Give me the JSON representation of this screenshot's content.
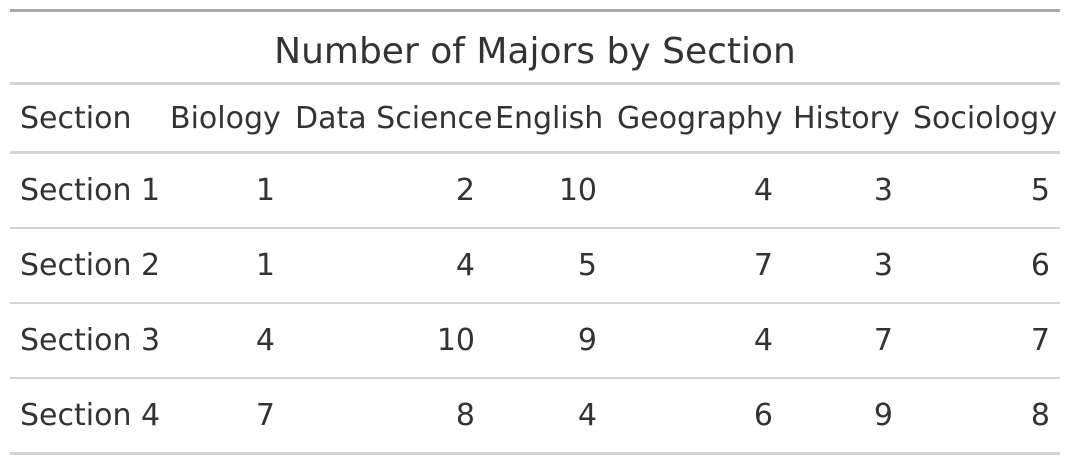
{
  "chart_data": {
    "type": "table",
    "title": "Number of Majors by Section",
    "columns": [
      "Section",
      "Biology",
      "Data Science",
      "English",
      "Geography",
      "History",
      "Sociology"
    ],
    "rows": [
      [
        "Section 1",
        1,
        2,
        10,
        4,
        3,
        5
      ],
      [
        "Section 2",
        1,
        4,
        5,
        7,
        3,
        6
      ],
      [
        "Section 3",
        4,
        10,
        9,
        4,
        7,
        7
      ],
      [
        "Section 4",
        7,
        8,
        4,
        6,
        9,
        8
      ]
    ]
  }
}
